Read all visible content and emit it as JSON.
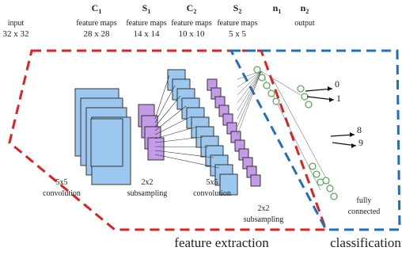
{
  "header": {
    "columns": [
      {
        "name": "input",
        "size": "32 x 32"
      },
      {
        "name": "C",
        "sub": "1",
        "label": "feature maps",
        "size": "28 x 28"
      },
      {
        "name": "S",
        "sub": "1",
        "label": "feature maps",
        "size": "14 x 14"
      },
      {
        "name": "C",
        "sub": "2",
        "label": "feature maps",
        "size": "10 x 10"
      },
      {
        "name": "S",
        "sub": "2",
        "label": "feature maps",
        "size": "5 x 5"
      },
      {
        "name": "n",
        "sub": "1"
      },
      {
        "name": "n",
        "sub": "2",
        "label": "output"
      }
    ]
  },
  "operations": [
    {
      "lines": [
        "5x5",
        "convolution"
      ]
    },
    {
      "lines": [
        "2x2",
        "subsampling"
      ]
    },
    {
      "lines": [
        "5x5",
        "convolution"
      ]
    },
    {
      "lines": [
        "2x2",
        "subsampling"
      ]
    },
    {
      "lines": [
        "fully",
        "connected"
      ]
    }
  ],
  "outputs": [
    "0",
    "1",
    "8",
    "9"
  ],
  "sections": {
    "feature_extraction": "feature extraction",
    "classification": "classification"
  }
}
